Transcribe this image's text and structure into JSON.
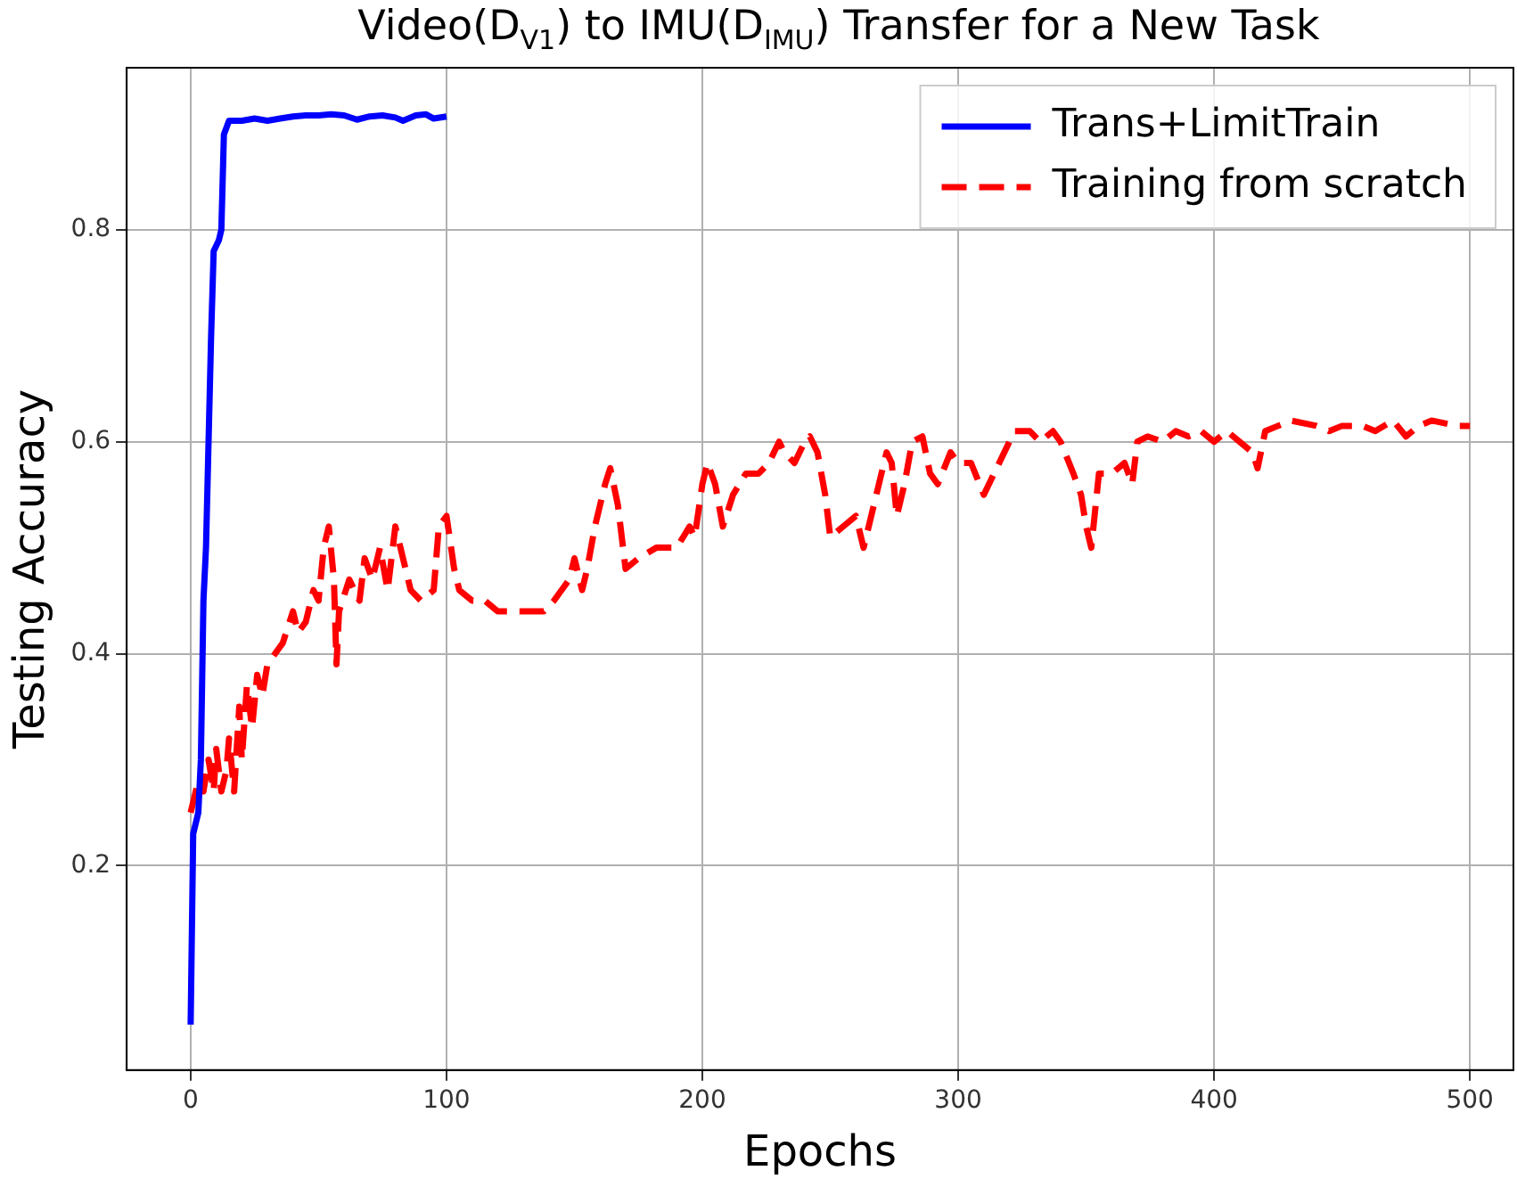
{
  "chart_data": {
    "type": "line",
    "title": "Video(D$_{V1}$) to IMU(D$_{IMU}$) Transfer for a New Task",
    "xlabel": "Epochs",
    "ylabel": "Testing Accuracy",
    "xlim": [
      -25,
      517
    ],
    "xticks": [
      0,
      100,
      200,
      300,
      400,
      500
    ],
    "ylim": [
      0.007,
      0.953
    ],
    "yticks": [
      0.2,
      0.4,
      0.6,
      0.8
    ],
    "grid": true,
    "legend": "top right",
    "marker": "none",
    "series": [
      {
        "name": "Trans+LimitTrain",
        "color": "#0000ff",
        "line_style": "solid",
        "x": [
          0,
          1,
          3,
          4,
          5,
          6,
          7,
          8,
          9,
          11,
          12,
          13,
          15,
          20,
          25,
          30,
          35,
          40,
          45,
          50,
          55,
          60,
          65,
          70,
          75,
          80,
          83,
          88,
          92,
          95,
          100
        ],
        "values": [
          0.05,
          0.23,
          0.25,
          0.3,
          0.45,
          0.5,
          0.6,
          0.7,
          0.78,
          0.79,
          0.8,
          0.89,
          0.903,
          0.903,
          0.905,
          0.903,
          0.905,
          0.907,
          0.908,
          0.908,
          0.909,
          0.908,
          0.904,
          0.907,
          0.908,
          0.906,
          0.903,
          0.908,
          0.909,
          0.905,
          0.907
        ]
      },
      {
        "name": "Training from scratch",
        "color": "#ff0000",
        "line_style": "dashed",
        "x": [
          0,
          3,
          5,
          7,
          9,
          10,
          12,
          14,
          15,
          17,
          19,
          20,
          22,
          24,
          26,
          28,
          30,
          33,
          36,
          40,
          42,
          45,
          48,
          50,
          52,
          54,
          56,
          57,
          58,
          62,
          66,
          68,
          71,
          74,
          77,
          80,
          82,
          86,
          90,
          95,
          97,
          100,
          103,
          105,
          110,
          115,
          120,
          130,
          138,
          142,
          148,
          150,
          153,
          155,
          158,
          162,
          164,
          167,
          170,
          175,
          182,
          190,
          195,
          197,
          200,
          202,
          205,
          208,
          212,
          217,
          222,
          226,
          230,
          232,
          236,
          240,
          242,
          245,
          248,
          250,
          255,
          260,
          263,
          268,
          272,
          274,
          276,
          279,
          282,
          286,
          289,
          292,
          297,
          300,
          305,
          310,
          314,
          318,
          322,
          328,
          332,
          337,
          340,
          345,
          348,
          350,
          352,
          355,
          360,
          365,
          368,
          370,
          374,
          380,
          385,
          390,
          395,
          400,
          405,
          410,
          415,
          417,
          420,
          425,
          430,
          440,
          445,
          450,
          458,
          463,
          470,
          475,
          480,
          485,
          495,
          500
        ],
        "values": [
          0.25,
          0.28,
          0.27,
          0.3,
          0.27,
          0.31,
          0.27,
          0.29,
          0.32,
          0.27,
          0.35,
          0.3,
          0.37,
          0.33,
          0.38,
          0.36,
          0.39,
          0.4,
          0.41,
          0.44,
          0.42,
          0.43,
          0.46,
          0.45,
          0.5,
          0.52,
          0.47,
          0.39,
          0.44,
          0.47,
          0.45,
          0.49,
          0.47,
          0.5,
          0.46,
          0.52,
          0.5,
          0.46,
          0.45,
          0.46,
          0.52,
          0.53,
          0.48,
          0.46,
          0.45,
          0.45,
          0.44,
          0.44,
          0.44,
          0.45,
          0.47,
          0.49,
          0.46,
          0.48,
          0.52,
          0.56,
          0.575,
          0.54,
          0.48,
          0.49,
          0.5,
          0.5,
          0.52,
          0.51,
          0.56,
          0.58,
          0.56,
          0.52,
          0.55,
          0.57,
          0.57,
          0.58,
          0.6,
          0.59,
          0.58,
          0.6,
          0.605,
          0.59,
          0.55,
          0.51,
          0.52,
          0.53,
          0.5,
          0.55,
          0.59,
          0.58,
          0.53,
          0.56,
          0.6,
          0.605,
          0.57,
          0.56,
          0.59,
          0.58,
          0.58,
          0.55,
          0.57,
          0.59,
          0.61,
          0.61,
          0.6,
          0.61,
          0.6,
          0.57,
          0.55,
          0.52,
          0.5,
          0.57,
          0.57,
          0.58,
          0.56,
          0.6,
          0.605,
          0.6,
          0.61,
          0.605,
          0.61,
          0.6,
          0.61,
          0.6,
          0.59,
          0.575,
          0.61,
          0.615,
          0.62,
          0.615,
          0.61,
          0.615,
          0.615,
          0.61,
          0.62,
          0.605,
          0.615,
          0.62,
          0.615,
          0.615
        ]
      }
    ]
  }
}
